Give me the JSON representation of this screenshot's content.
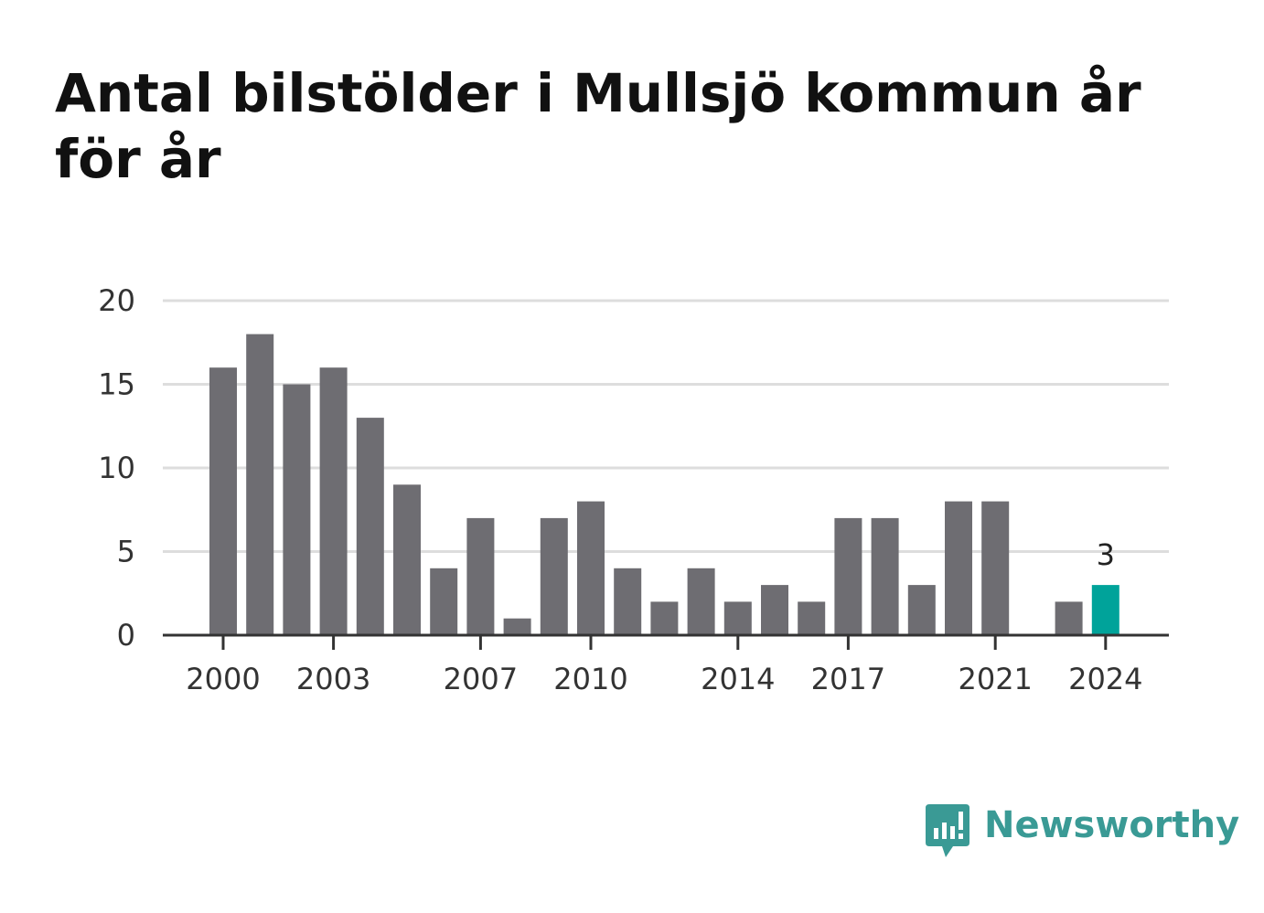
{
  "title": "Antal bilstölder i Mullsjö kommun år för år",
  "brand": {
    "name": "Newsworthy",
    "logo_icon": "newsworthy-logo-icon"
  },
  "colors": {
    "bar": "#6e6d72",
    "highlight": "#00a39a",
    "grid": "#dddddd",
    "axis": "#333333",
    "brand": "#3a9a95"
  },
  "chart_data": {
    "type": "bar",
    "categories": [
      "2000",
      "2001",
      "2002",
      "2003",
      "2004",
      "2005",
      "2006",
      "2007",
      "2008",
      "2009",
      "2010",
      "2011",
      "2012",
      "2013",
      "2014",
      "2015",
      "2016",
      "2017",
      "2018",
      "2019",
      "2020",
      "2021",
      "2022",
      "2023",
      "2024"
    ],
    "values": [
      16,
      18,
      15,
      16,
      13,
      9,
      4,
      7,
      1,
      7,
      8,
      4,
      2,
      4,
      2,
      3,
      2,
      7,
      7,
      3,
      8,
      8,
      0,
      2,
      3
    ],
    "x_tick_labels": [
      "2000",
      "2003",
      "2007",
      "2010",
      "2014",
      "2017",
      "2021",
      "2024"
    ],
    "y_ticks": [
      0,
      5,
      10,
      15,
      20
    ],
    "ylim": [
      0,
      20
    ],
    "highlight_category": "2024",
    "data_labels": [
      {
        "category": "2024",
        "text": "3"
      }
    ],
    "title": "Antal bilstölder i Mullsjö kommun år för år",
    "xlabel": "",
    "ylabel": "",
    "grid": true
  }
}
